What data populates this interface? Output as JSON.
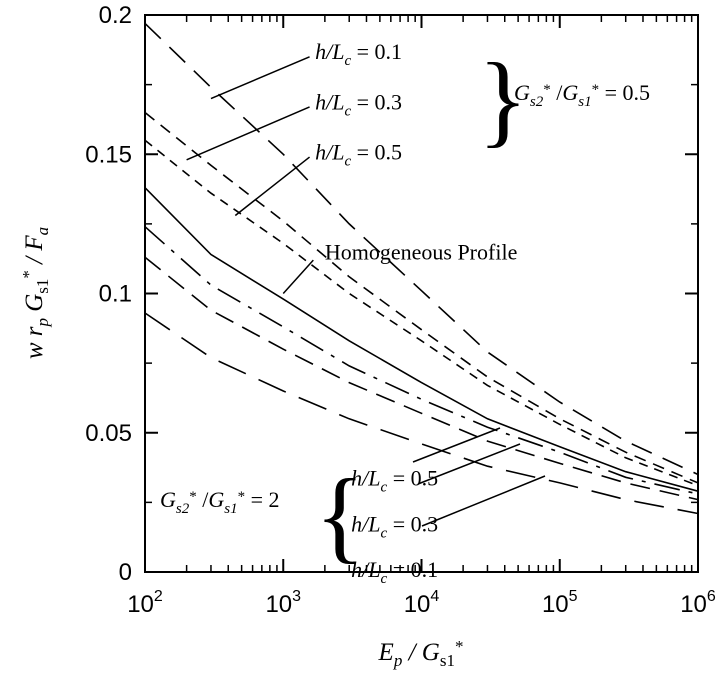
{
  "chart_data": {
    "type": "line",
    "xscale": "log",
    "xlim": [
      100,
      1000000
    ],
    "ylim": [
      0,
      0.2
    ],
    "grid": false,
    "xlabel": "E_p / G_s1*",
    "ylabel": "w r_p G_s1* / F_a",
    "x_ticks": [
      {
        "value": 100,
        "base": "10",
        "exp": "2"
      },
      {
        "value": 1000,
        "base": "10",
        "exp": "3"
      },
      {
        "value": 10000,
        "base": "10",
        "exp": "4"
      },
      {
        "value": 100000,
        "base": "10",
        "exp": "5"
      },
      {
        "value": 1000000,
        "base": "10",
        "exp": "6"
      }
    ],
    "y_ticks": [
      {
        "value": 0,
        "label": "0"
      },
      {
        "value": 0.05,
        "label": "0.05"
      },
      {
        "value": 0.1,
        "label": "0.1"
      },
      {
        "value": 0.15,
        "label": "0.15"
      },
      {
        "value": 0.2,
        "label": "0.2"
      }
    ],
    "series": [
      {
        "x": [
          100,
          300,
          1000,
          3000,
          10000,
          30000,
          100000,
          300000,
          1000000
        ],
        "y": [
          0.138,
          0.114,
          0.098,
          0.083,
          0.068,
          0.055,
          0.045,
          0.036,
          0.029
        ],
        "dash": ""
      },
      {
        "x": [
          100,
          300,
          1000,
          3000,
          10000,
          30000,
          100000,
          300000,
          1000000
        ],
        "y": [
          0.197,
          0.174,
          0.15,
          0.125,
          0.101,
          0.079,
          0.061,
          0.047,
          0.035
        ],
        "dash": "22,12"
      },
      {
        "x": [
          100,
          300,
          1000,
          3000,
          10000,
          30000,
          100000,
          300000,
          1000000
        ],
        "y": [
          0.165,
          0.146,
          0.126,
          0.106,
          0.087,
          0.07,
          0.055,
          0.043,
          0.032
        ],
        "dash": "12,8"
      },
      {
        "x": [
          100,
          300,
          1000,
          3000,
          10000,
          30000,
          100000,
          300000,
          1000000
        ],
        "y": [
          0.155,
          0.136,
          0.118,
          0.1,
          0.083,
          0.067,
          0.053,
          0.041,
          0.031
        ],
        "dash": "9,7"
      },
      {
        "x": [
          100,
          300,
          1000,
          3000,
          10000,
          30000,
          100000,
          300000,
          1000000
        ],
        "y": [
          0.124,
          0.103,
          0.088,
          0.074,
          0.062,
          0.052,
          0.043,
          0.034,
          0.028
        ],
        "dash": "26,9,4,9"
      },
      {
        "x": [
          100,
          300,
          1000,
          3000,
          10000,
          30000,
          100000,
          300000,
          1000000
        ],
        "y": [
          0.113,
          0.094,
          0.08,
          0.068,
          0.057,
          0.047,
          0.039,
          0.032,
          0.026
        ],
        "dash": "20,10"
      },
      {
        "x": [
          100,
          300,
          1000,
          3000,
          10000,
          30000,
          100000,
          300000,
          1000000
        ],
        "y": [
          0.093,
          0.077,
          0.065,
          0.055,
          0.046,
          0.038,
          0.032,
          0.026,
          0.021
        ],
        "dash": "30,14"
      }
    ],
    "annotations": [
      {
        "id": "hom",
        "text": "Homogeneous Profile",
        "tx": 2000,
        "ty": 0.115,
        "lx1": 1650,
        "ly1": 0.112,
        "lx2": 1000,
        "ly2": 0.1
      },
      {
        "id": "u1",
        "pre": "h/L",
        "sub": "c",
        "post": " = 0.1",
        "tx": 1700,
        "ty": 0.187,
        "lx1": 1550,
        "ly1": 0.185,
        "lx2": 300,
        "ly2": 0.17
      },
      {
        "id": "u2",
        "pre": "h/L",
        "sub": "c",
        "post": " = 0.3",
        "tx": 1700,
        "ty": 0.169,
        "lx1": 1550,
        "ly1": 0.167,
        "lx2": 200,
        "ly2": 0.148
      },
      {
        "id": "u3",
        "pre": "h/L",
        "sub": "c",
        "post": " = 0.5",
        "tx": 1700,
        "ty": 0.151,
        "lx1": 1550,
        "ly1": 0.149,
        "lx2": 450,
        "ly2": 0.128
      },
      {
        "id": "l1",
        "pre": "h/L",
        "sub": "c",
        "post": " = 0.5",
        "tx": 3100,
        "ty": 0.034,
        "lx1": 1000000000.0,
        "ly1": 0,
        "lx2": 1000000000.0,
        "ly2": 0
      },
      {
        "id": "l2",
        "pre": "h/L",
        "sub": "c",
        "post": " = 0.3",
        "tx": 3100,
        "ty": 0.0175,
        "lx1": 1000000000.0,
        "ly1": 0,
        "lx2": 1000000000.0,
        "ly2": 0
      },
      {
        "id": "l3",
        "pre": "h/L",
        "sub": "c",
        "post": " = 0.1",
        "tx": 3100,
        "ty": 0.001,
        "lx1": 1000000000.0,
        "ly1": 0,
        "lx2": 1000000000.0,
        "ly2": 0
      }
    ],
    "group_labels": [
      {
        "id": "upper",
        "text": "G_s2* /G_s1* = 0.5"
      },
      {
        "id": "lower",
        "text": "G_s2* /G_s1* = 2"
      }
    ]
  }
}
